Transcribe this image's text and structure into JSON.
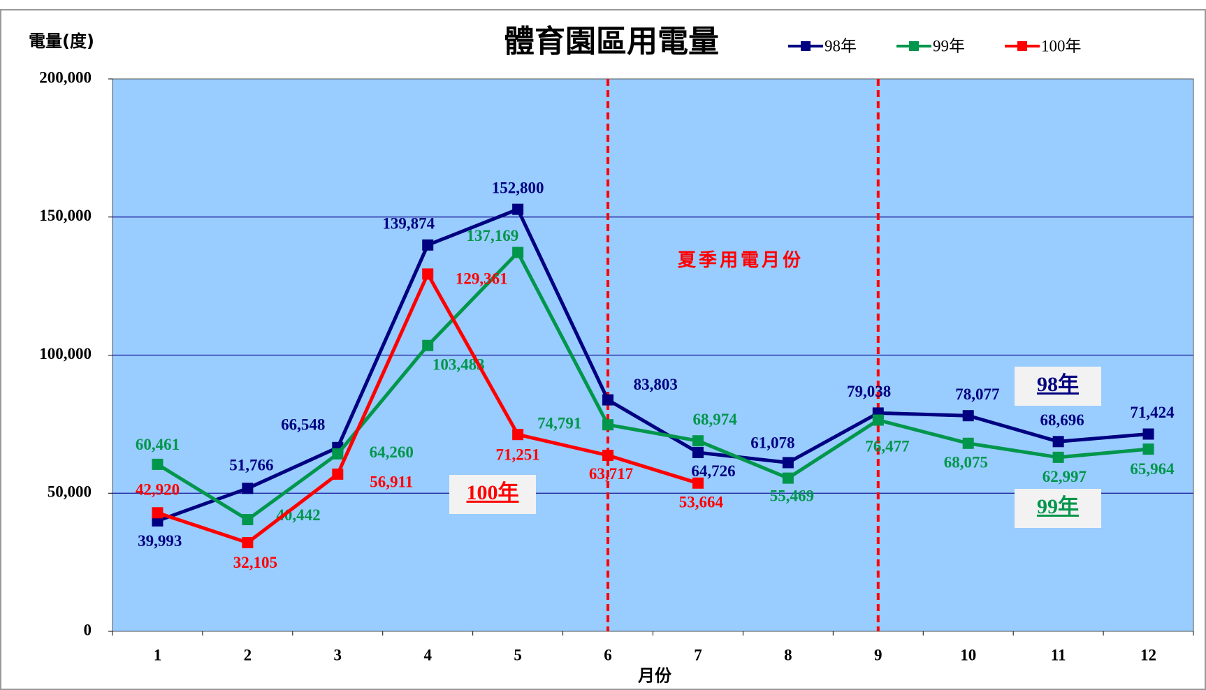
{
  "chart_data": {
    "type": "line",
    "title": "體育園區用電量",
    "y_label": "電量(度)",
    "x_label": "月份",
    "annotation": "夏季用電月份",
    "categories": [
      "1",
      "2",
      "3",
      "4",
      "5",
      "6",
      "7",
      "8",
      "9",
      "10",
      "11",
      "12"
    ],
    "ylim": [
      0,
      200000
    ],
    "yticks": [
      0,
      {
        "value": 50000,
        "label": "50,000"
      },
      {
        "value": 100000,
        "label": "100,000"
      },
      {
        "value": 150000,
        "label": "150,000"
      },
      {
        "value": 200000,
        "label": "200,000"
      }
    ],
    "grid": true,
    "series": [
      {
        "name": "98年",
        "color": "#000080",
        "values": [
          39993,
          51766,
          66548,
          139874,
          152800,
          83803,
          64726,
          61078,
          79038,
          78077,
          68696,
          71424
        ],
        "value_labels": [
          "39,993",
          "51,766",
          "66,548",
          "139,874",
          "152,800",
          "83,803",
          "64,726",
          "61,078",
          "79,038",
          "78,077",
          "68,696",
          "71,424"
        ]
      },
      {
        "name": "99年",
        "color": "#00964b",
        "values": [
          60461,
          40442,
          64260,
          103483,
          137169,
          74791,
          68974,
          55469,
          76477,
          68075,
          62997,
          65964
        ],
        "value_labels": [
          "60,461",
          "40,442",
          "64,260",
          "103,483",
          "137,169",
          "74,791",
          "68,974",
          "55,469",
          "76,477",
          "68,075",
          "62,997",
          "65,964"
        ]
      },
      {
        "name": "100年",
        "color": "#ff0000",
        "values": [
          42920,
          32105,
          56911,
          129361,
          71251,
          63717,
          53664,
          null,
          null,
          null,
          null,
          null
        ],
        "value_labels": [
          "42,920",
          "32,105",
          "56,911",
          "129,361",
          "71,251",
          "63,717",
          "53,664",
          null,
          null,
          null,
          null,
          null
        ]
      }
    ]
  }
}
